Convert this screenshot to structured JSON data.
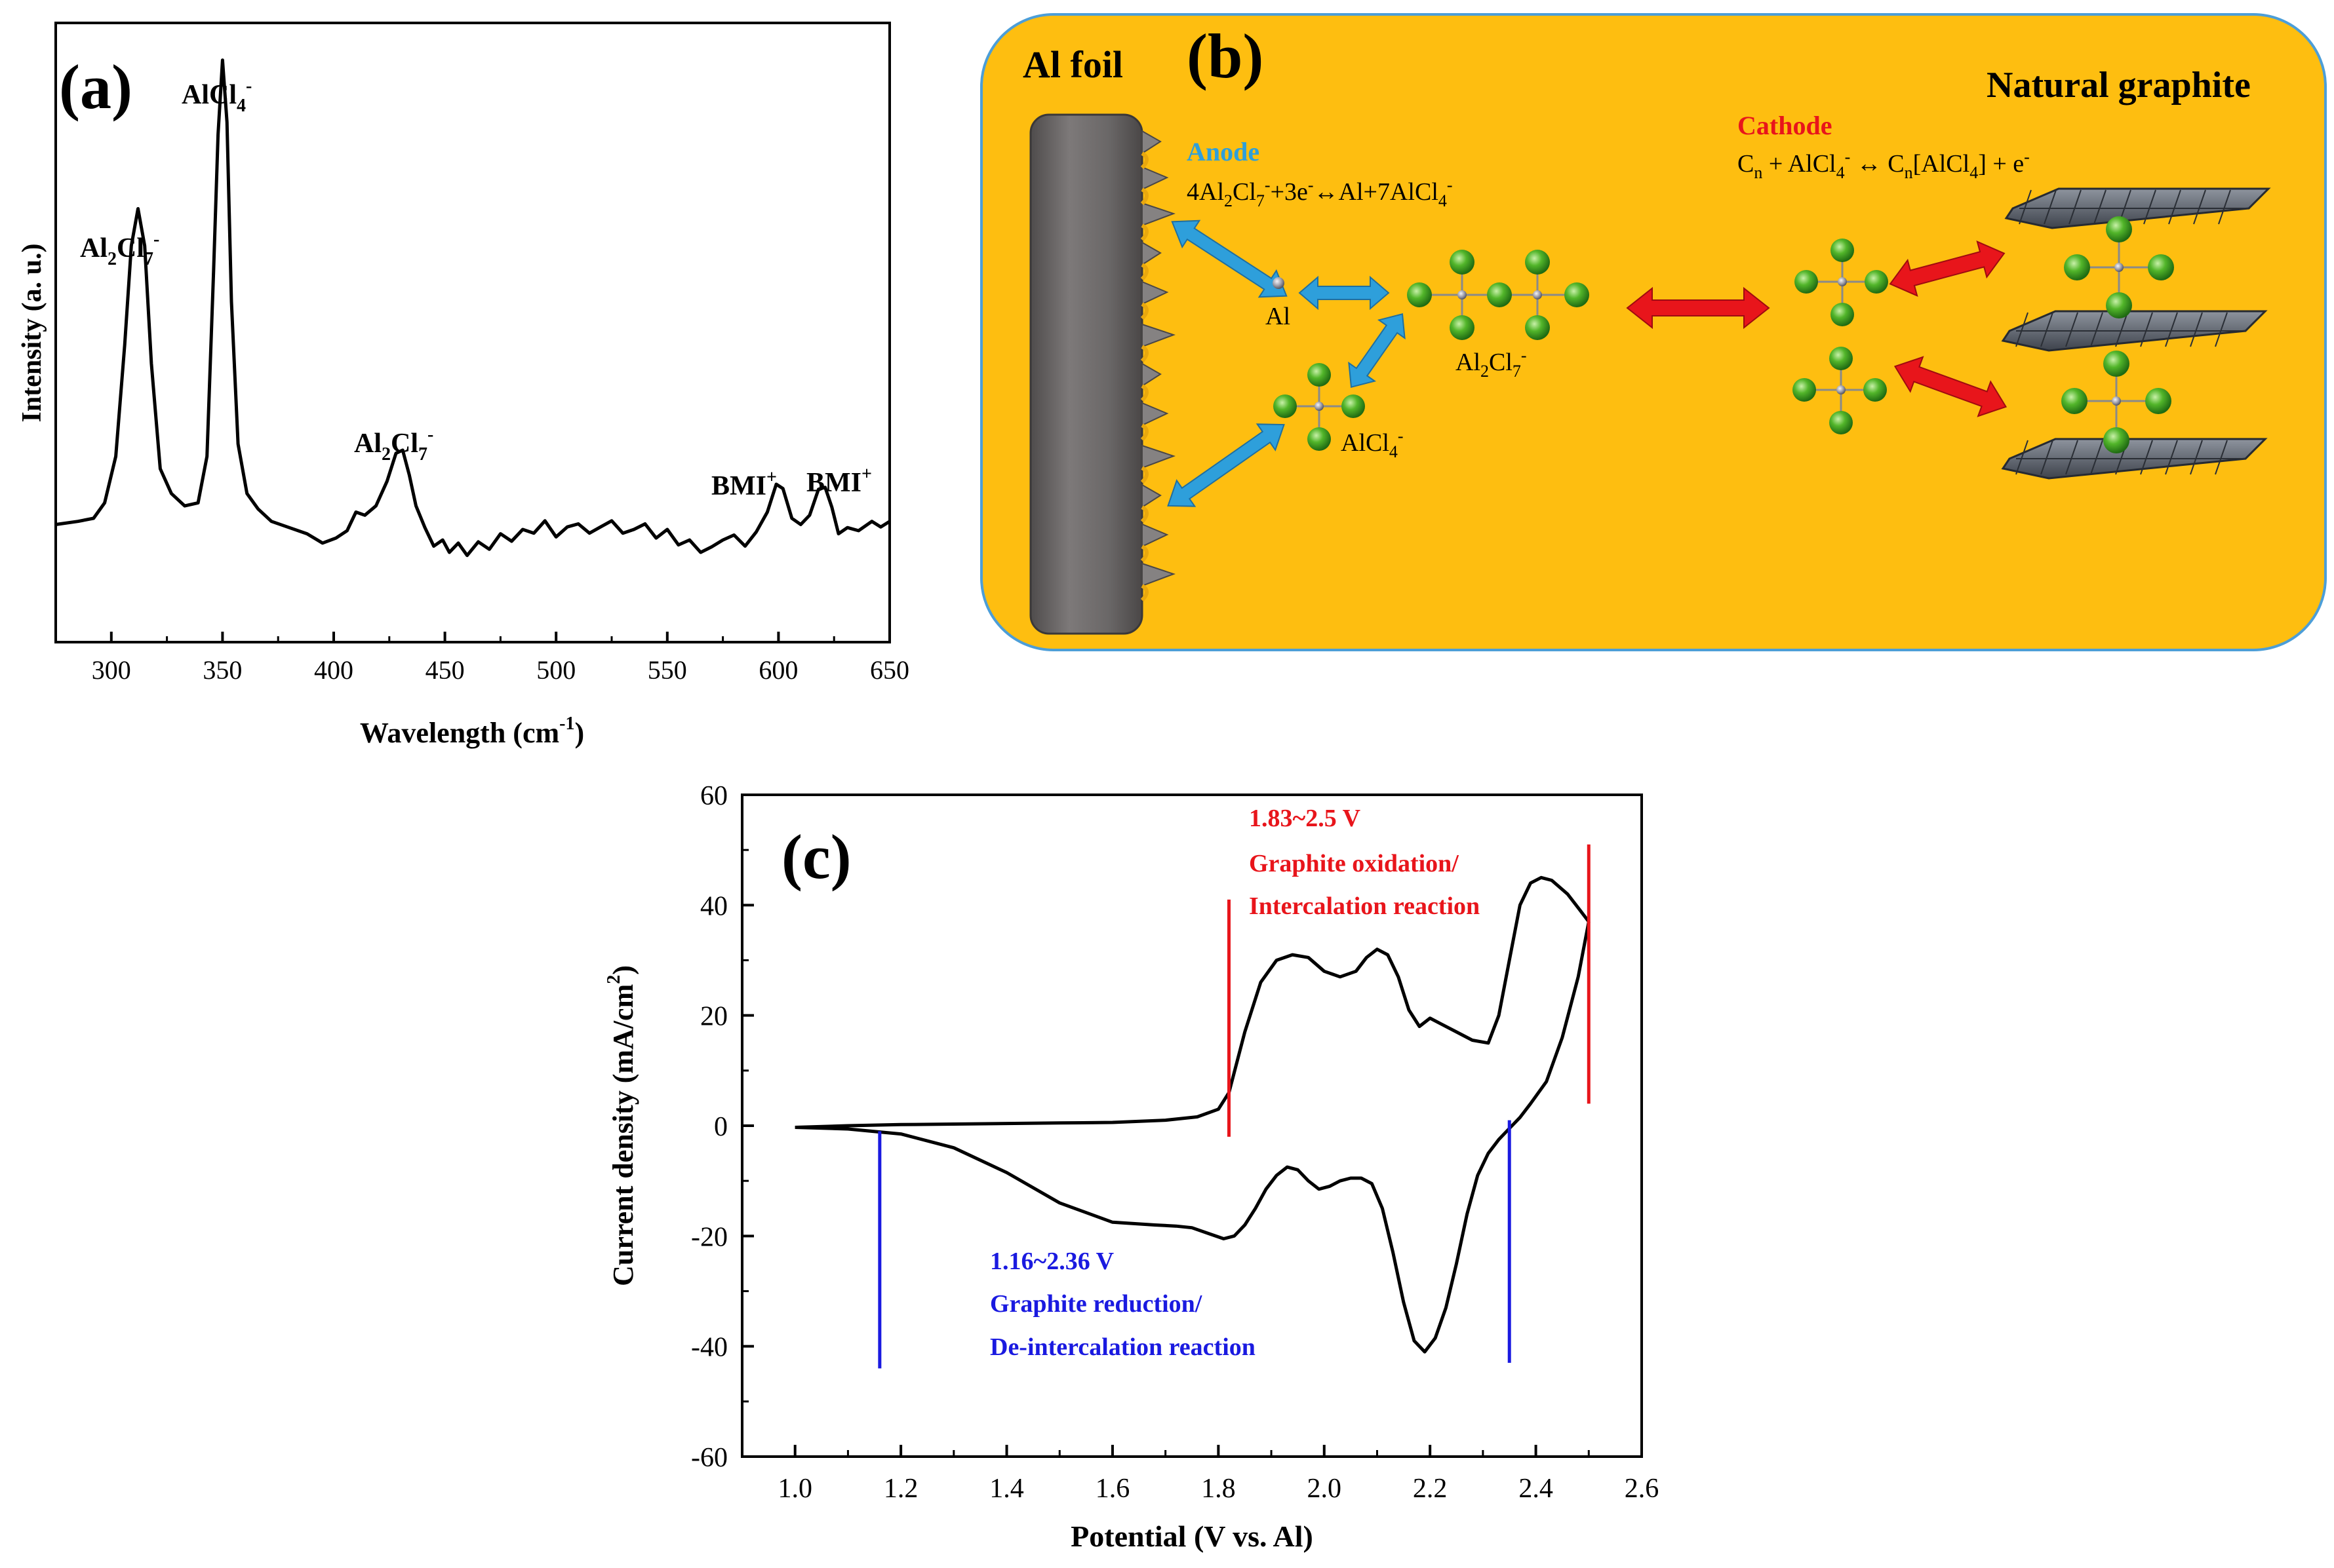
{
  "figure_name": "Raman spectrum, electrochemistry scheme and cyclic voltammogram",
  "panel_a": {
    "label": "(a)",
    "ylabel": "Intensity (a. u.)",
    "xlabel": {
      "main": "Wavelength (cm",
      "sup": "-1",
      "close": ")"
    },
    "peak_labels": [
      {
        "main": "Al",
        "sub": "2",
        "main2": "Cl",
        "sub2": "7",
        "sup": "-"
      },
      {
        "main": "AlCl",
        "sub": "4",
        "main2": "",
        "sub2": "",
        "sup": "-"
      },
      {
        "main": "Al",
        "sub": "2",
        "main2": "Cl",
        "sub2": "7",
        "sup": "-"
      },
      {
        "main": "BMI",
        "sub": "",
        "main2": "",
        "sub2": "",
        "sup": "+"
      },
      {
        "main": "BMI",
        "sub": "",
        "main2": "",
        "sub2": "",
        "sup": "+"
      }
    ]
  },
  "panel_b": {
    "label": "(b)",
    "al_foil": "Al foil",
    "graphite": "Natural graphite",
    "anode_title": "Anode",
    "anode_eq": {
      "p1": "4Al",
      "s1": "2",
      "p2": "Cl",
      "s2": "7",
      "u1": "-",
      "p3": "+3e",
      "u2": "-",
      "p4": "↔Al+7AlCl",
      "s3": "4",
      "u3": "-"
    },
    "cathode_title": "Cathode",
    "cathode_eq": {
      "p1": "C",
      "s1": "n",
      "p2": " + AlCl",
      "s2": "4",
      "u1": "-",
      "p3": " ↔ C",
      "s3": "n",
      "p4": "[AlCl",
      "s4": "4",
      "p5": "]  + e",
      "u2": "-"
    },
    "al_label": "Al",
    "al2cl7_label": {
      "p1": "Al",
      "s1": "2",
      "p2": "Cl",
      "s2": "7",
      "u": "-"
    },
    "alcl4_label": {
      "p1": "AlCl",
      "s1": "4",
      "u": "-"
    },
    "colors": {
      "background": "#FEBE10",
      "anode_arrow": "#2E9FDB",
      "cathode_arrow": "#E8151B",
      "chlorine": "#52B52A",
      "foil": "#6E6B6B"
    }
  },
  "panel_c": {
    "label": "(c)",
    "oxidation_range": "1.83~2.5 V",
    "oxidation_line1": "Graphite oxidation/",
    "oxidation_line2": "Intercalation reaction",
    "reduction_range": "1.16~2.36 V",
    "reduction_line1": "Graphite reduction/",
    "reduction_line2": "De-intercalation reaction",
    "colors": {
      "oxidation": "#E8151B",
      "reduction": "#1A1AE0",
      "curve": "#000000"
    }
  },
  "chart_data": [
    {
      "type": "line",
      "title": "(a)",
      "xlabel": "Wavelength (cm-1)",
      "ylabel": "Intensity (a. u.)",
      "xlim": [
        275,
        650
      ],
      "ylim": [
        0,
        100
      ],
      "xticks": [
        300,
        350,
        400,
        450,
        500,
        550,
        600,
        650
      ],
      "yticks_visible": false,
      "series": [
        {
          "name": "Raman spectrum",
          "x": [
            275,
            285,
            292,
            297,
            302,
            306,
            309,
            312,
            315,
            318,
            322,
            327,
            333,
            339,
            343,
            346,
            348,
            350,
            352,
            354,
            357,
            361,
            366,
            372,
            380,
            388,
            395,
            401,
            406,
            410,
            414,
            419,
            424,
            428,
            431,
            434,
            437,
            441,
            445,
            449,
            452,
            456,
            460,
            465,
            470,
            475,
            480,
            485,
            490,
            495,
            500,
            505,
            510,
            515,
            520,
            525,
            530,
            535,
            540,
            545,
            550,
            555,
            560,
            565,
            570,
            575,
            580,
            585,
            590,
            595,
            599,
            602,
            606,
            610,
            614,
            618,
            621,
            624,
            627,
            631,
            636,
            642,
            646,
            650
          ],
          "y": [
            19,
            19.5,
            20,
            22.5,
            30,
            48,
            64,
            70,
            64,
            45,
            28,
            24,
            22,
            22.5,
            30,
            60,
            82,
            94,
            84,
            55,
            32,
            24,
            21.5,
            19.5,
            18.5,
            17.5,
            16,
            16.8,
            18,
            21,
            20.5,
            22,
            26,
            30.5,
            31,
            27,
            22,
            18.5,
            15.5,
            16.5,
            14.5,
            16,
            14,
            16.2,
            15,
            17.5,
            16.3,
            18.2,
            17.6,
            19.6,
            17,
            18.6,
            19.1,
            17.6,
            18.6,
            19.6,
            17.6,
            18.2,
            19.1,
            16.8,
            18.2,
            15.7,
            16.5,
            14.5,
            15.4,
            16.5,
            17.3,
            15.5,
            17.8,
            21,
            25.5,
            24.8,
            20,
            19,
            20.5,
            24.7,
            25,
            21.8,
            17.5,
            18.5,
            18,
            19.5,
            18.6,
            19.5
          ]
        }
      ],
      "peak_annotations": [
        "Al2Cl7-",
        "AlCl4-",
        "Al2Cl7-",
        "BMI+",
        "BMI+"
      ]
    },
    {
      "type": "line",
      "title": "(c)",
      "xlabel": "Potential (V vs. Al)",
      "ylabel": "Current density (mA/cm2)",
      "xlim": [
        0.9,
        2.6
      ],
      "ylim": [
        -60,
        60
      ],
      "xticks": [
        1.0,
        1.2,
        1.4,
        1.6,
        1.8,
        2.0,
        2.2,
        2.4,
        2.6
      ],
      "yticks": [
        -60,
        -40,
        -20,
        0,
        20,
        40,
        60
      ],
      "series": [
        {
          "name": "CV forward (anodic) scan",
          "x": [
            1.0,
            1.1,
            1.2,
            1.3,
            1.4,
            1.5,
            1.6,
            1.7,
            1.76,
            1.8,
            1.82,
            1.85,
            1.88,
            1.91,
            1.94,
            1.97,
            2.0,
            2.03,
            2.06,
            2.08,
            2.1,
            2.12,
            2.14,
            2.16,
            2.18,
            2.2,
            2.22,
            2.25,
            2.28,
            2.31,
            2.33,
            2.35,
            2.37,
            2.39,
            2.41,
            2.43,
            2.46,
            2.48,
            2.5
          ],
          "y": [
            -0.3,
            0,
            0.2,
            0.3,
            0.4,
            0.5,
            0.6,
            1.0,
            1.6,
            3.0,
            6.0,
            17,
            26,
            30,
            31,
            30.5,
            28,
            27,
            28,
            30.5,
            32,
            31,
            27,
            21,
            18,
            19.5,
            18.5,
            17,
            15.5,
            15,
            20,
            30,
            40,
            44,
            45,
            44.5,
            42,
            39.5,
            37
          ]
        },
        {
          "name": "CV reverse (cathodic) scan",
          "x": [
            2.5,
            2.48,
            2.45,
            2.42,
            2.39,
            2.37,
            2.35,
            2.33,
            2.31,
            2.29,
            2.27,
            2.25,
            2.23,
            2.21,
            2.19,
            2.17,
            2.15,
            2.13,
            2.11,
            2.09,
            2.07,
            2.05,
            2.03,
            2.01,
            1.99,
            1.97,
            1.95,
            1.93,
            1.91,
            1.89,
            1.87,
            1.85,
            1.83,
            1.81,
            1.78,
            1.75,
            1.72,
            1.68,
            1.6,
            1.5,
            1.4,
            1.3,
            1.2,
            1.1,
            1.0
          ],
          "y": [
            37,
            27,
            16,
            8,
            4,
            1.5,
            -0.5,
            -2.5,
            -5,
            -9,
            -16,
            -25,
            -33,
            -38.5,
            -41,
            -39,
            -32,
            -23,
            -15,
            -10.5,
            -9.5,
            -9.5,
            -10,
            -11,
            -11.5,
            -10,
            -8,
            -7.5,
            -9,
            -11.5,
            -15,
            -18,
            -20,
            -20.5,
            -19.5,
            -18.5,
            -18.2,
            -18,
            -17.5,
            -14,
            -8.5,
            -4,
            -1.5,
            -0.6,
            -0.3
          ]
        }
      ],
      "annotation_lines": [
        {
          "x": 1.82,
          "y_range": [
            -2,
            41
          ],
          "color": "red"
        },
        {
          "x": 2.5,
          "y_range": [
            4,
            51
          ],
          "color": "red"
        },
        {
          "x": 1.16,
          "y_range": [
            -1,
            -44
          ],
          "color": "blue"
        },
        {
          "x": 2.35,
          "y_range": [
            1,
            -43
          ],
          "color": "blue"
        }
      ]
    }
  ]
}
